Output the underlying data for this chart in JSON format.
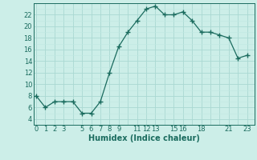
{
  "xlabel": "Humidex (Indice chaleur)",
  "x": [
    0,
    1,
    2,
    3,
    4,
    5,
    6,
    7,
    8,
    9,
    10,
    11,
    12,
    13,
    14,
    15,
    16,
    17,
    18,
    19,
    20,
    21,
    22,
    23
  ],
  "y": [
    8,
    6,
    7,
    7,
    7,
    5,
    5,
    7,
    12,
    16.5,
    19,
    21,
    23,
    23.5,
    22,
    22,
    22.5,
    21,
    19,
    19,
    18.5,
    18,
    14.5,
    15
  ],
  "line_color": "#1a6b5e",
  "marker_color": "#1a6b5e",
  "bg_color": "#cceee8",
  "grid_color_major": "#aad8d2",
  "grid_color_minor": "#c0e8e2",
  "tick_color": "#1a6b5e",
  "label_color": "#1a6b5e",
  "ylim": [
    3.5,
    23.8
  ],
  "yticks": [
    4,
    6,
    8,
    10,
    12,
    14,
    16,
    18,
    20,
    22
  ],
  "xtick_show": [
    0,
    1,
    2,
    3,
    5,
    6,
    7,
    8,
    9,
    11,
    12,
    13,
    15,
    16,
    18,
    21,
    23
  ],
  "xlabel_fontsize": 7,
  "tick_fontsize": 6,
  "xlim": [
    -0.3,
    23.8
  ]
}
